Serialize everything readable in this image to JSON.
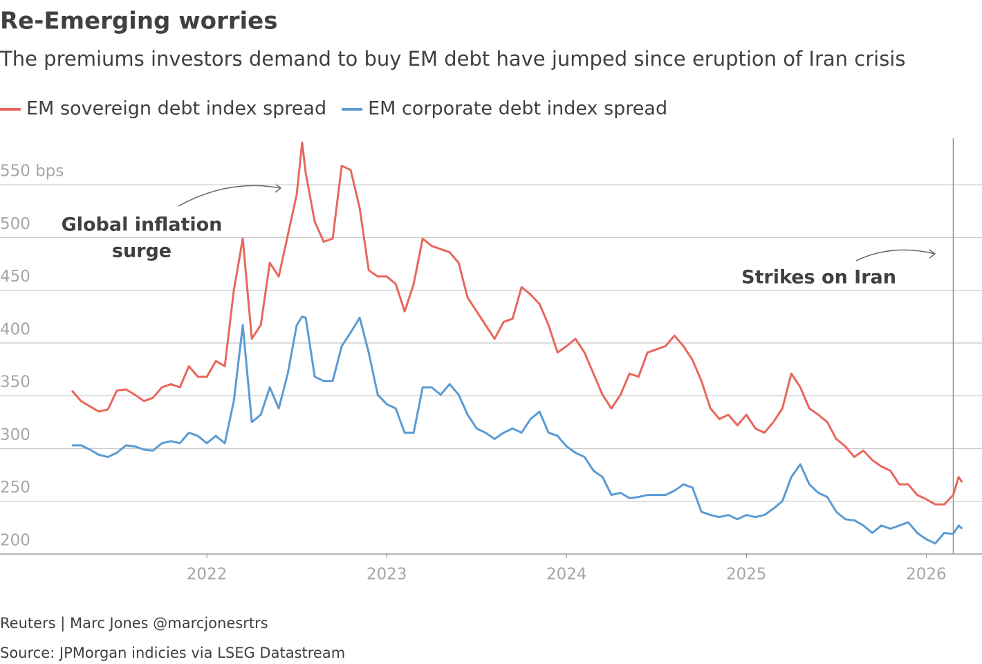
{
  "chart_data": {
    "type": "line",
    "title": "Re-Emerging worries",
    "subtitle": "The premiums investors demand to buy EM debt have jumped since eruption of Iran crisis",
    "x": [
      2021.25,
      2021.3,
      2021.35,
      2021.4,
      2021.45,
      2021.5,
      2021.55,
      2021.6,
      2021.65,
      2021.7,
      2021.75,
      2021.8,
      2021.85,
      2021.9,
      2021.95,
      2022.0,
      2022.05,
      2022.1,
      2022.15,
      2022.2,
      2022.25,
      2022.3,
      2022.35,
      2022.4,
      2022.45,
      2022.5,
      2022.53,
      2022.55,
      2022.6,
      2022.65,
      2022.7,
      2022.75,
      2022.8,
      2022.85,
      2022.9,
      2022.95,
      2023.0,
      2023.05,
      2023.1,
      2023.15,
      2023.2,
      2023.25,
      2023.3,
      2023.35,
      2023.4,
      2023.45,
      2023.5,
      2023.55,
      2023.6,
      2023.65,
      2023.7,
      2023.75,
      2023.8,
      2023.85,
      2023.9,
      2023.95,
      2024.0,
      2024.05,
      2024.1,
      2024.15,
      2024.2,
      2024.25,
      2024.3,
      2024.35,
      2024.4,
      2024.45,
      2024.5,
      2024.55,
      2024.6,
      2024.65,
      2024.7,
      2024.75,
      2024.8,
      2024.85,
      2024.9,
      2024.95,
      2025.0,
      2025.05,
      2025.1,
      2025.15,
      2025.2,
      2025.25,
      2025.3,
      2025.35,
      2025.4,
      2025.45,
      2025.5,
      2025.55,
      2025.6,
      2025.65,
      2025.7,
      2025.75,
      2025.8,
      2025.85,
      2025.9,
      2025.95,
      2026.0,
      2026.05,
      2026.1,
      2026.15,
      2026.18,
      2026.2
    ],
    "series": [
      {
        "name": "EM sovereign debt index spread",
        "color": "#e8675c",
        "values": [
          355,
          345,
          340,
          335,
          337,
          355,
          356,
          351,
          345,
          348,
          358,
          361,
          358,
          378,
          368,
          368,
          383,
          378,
          450,
          499,
          404,
          417,
          476,
          463,
          502,
          541,
          590,
          561,
          515,
          496,
          499,
          568,
          564,
          528,
          469,
          463,
          463,
          456,
          430,
          456,
          499,
          492,
          489,
          486,
          476,
          443,
          430,
          417,
          404,
          420,
          423,
          453,
          446,
          437,
          417,
          391,
          397,
          404,
          391,
          371,
          351,
          338,
          351,
          371,
          368,
          391,
          394,
          397,
          407,
          397,
          384,
          364,
          338,
          328,
          332,
          322,
          332,
          319,
          315,
          325,
          338,
          371,
          358,
          338,
          332,
          325,
          309,
          302,
          292,
          298,
          289,
          283,
          279,
          266,
          266,
          256,
          252,
          247,
          247,
          256,
          273,
          268
        ]
      },
      {
        "name": "EM corporate debt index spread",
        "color": "#5a9bd4",
        "values": [
          303,
          303,
          299,
          294,
          292,
          296,
          303,
          302,
          299,
          298,
          305,
          307,
          305,
          315,
          312,
          305,
          312,
          305,
          345,
          417,
          325,
          332,
          358,
          338,
          371,
          417,
          425,
          424,
          368,
          364,
          364,
          397,
          410,
          424,
          391,
          351,
          342,
          338,
          315,
          315,
          358,
          358,
          351,
          361,
          351,
          332,
          319,
          315,
          309,
          315,
          319,
          315,
          328,
          335,
          315,
          312,
          302,
          296,
          292,
          279,
          273,
          256,
          258,
          253,
          254,
          256,
          256,
          256,
          260,
          266,
          263,
          240,
          237,
          235,
          237,
          233,
          237,
          235,
          237,
          243,
          250,
          273,
          285,
          266,
          258,
          254,
          240,
          233,
          232,
          227,
          220,
          227,
          224,
          227,
          230,
          220,
          214,
          210,
          220,
          219,
          227,
          224
        ]
      }
    ],
    "xlim": [
      2020.85,
      2026.31
    ],
    "xticks": [
      2022,
      2023,
      2024,
      2025,
      2026
    ],
    "ylim": [
      200,
      594
    ],
    "yticks": [
      200,
      250,
      300,
      350,
      400,
      450,
      500,
      {
        "value": 550,
        "label": "550 bps"
      }
    ],
    "grid": true,
    "legend": "top-left",
    "vline": 2026.15,
    "annotations": [
      {
        "lines": [
          "Global inflation",
          "surge"
        ]
      },
      {
        "lines": [
          "Strikes on Iran"
        ]
      }
    ],
    "footer": [
      "Reuters | Marc Jones @marcjonesrtrs",
      "Source: JPMorgan indicies via LSEG Datastream"
    ]
  }
}
